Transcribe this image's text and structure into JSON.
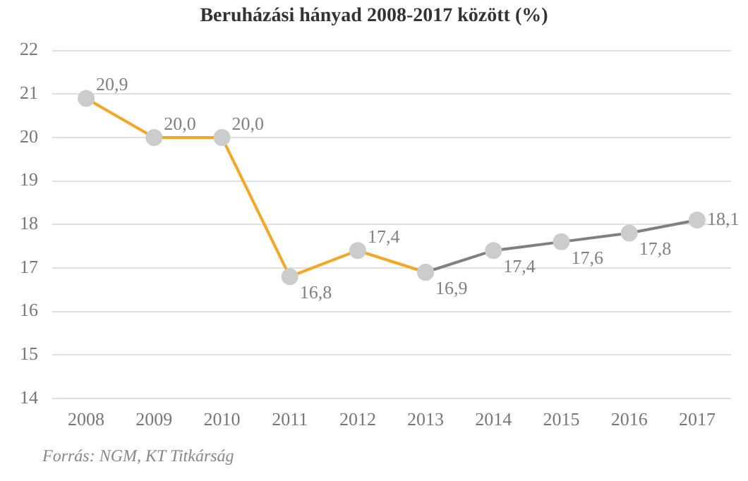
{
  "chart_data": {
    "type": "line",
    "title": "Beruházási hányad 2008-2017 között (%)",
    "categories": [
      "2008",
      "2009",
      "2010",
      "2011",
      "2012",
      "2013",
      "2014",
      "2015",
      "2016",
      "2017"
    ],
    "series": [
      {
        "color": "#f5a623",
        "values": [
          20.9,
          20.0,
          20.0,
          16.8,
          17.4,
          16.9,
          null,
          null,
          null,
          null
        ],
        "value_labels": [
          "20,9",
          "20,0",
          "20,0",
          "16,8",
          "17,4",
          "16,9",
          null,
          null,
          null,
          null
        ]
      },
      {
        "color": "#808080",
        "values": [
          null,
          null,
          null,
          null,
          null,
          16.9,
          17.4,
          17.6,
          17.8,
          18.1
        ],
        "value_labels": [
          null,
          null,
          null,
          null,
          null,
          null,
          "17,4",
          "17,6",
          "17,8",
          "18,1"
        ]
      }
    ],
    "ylim": [
      14,
      22
    ],
    "yticks": [
      14,
      15,
      16,
      17,
      18,
      19,
      20,
      21,
      22
    ],
    "grid": "y",
    "marker": "circle",
    "legend": false,
    "annotations": [
      "Forrás: NGM, KT Titkárság"
    ]
  }
}
